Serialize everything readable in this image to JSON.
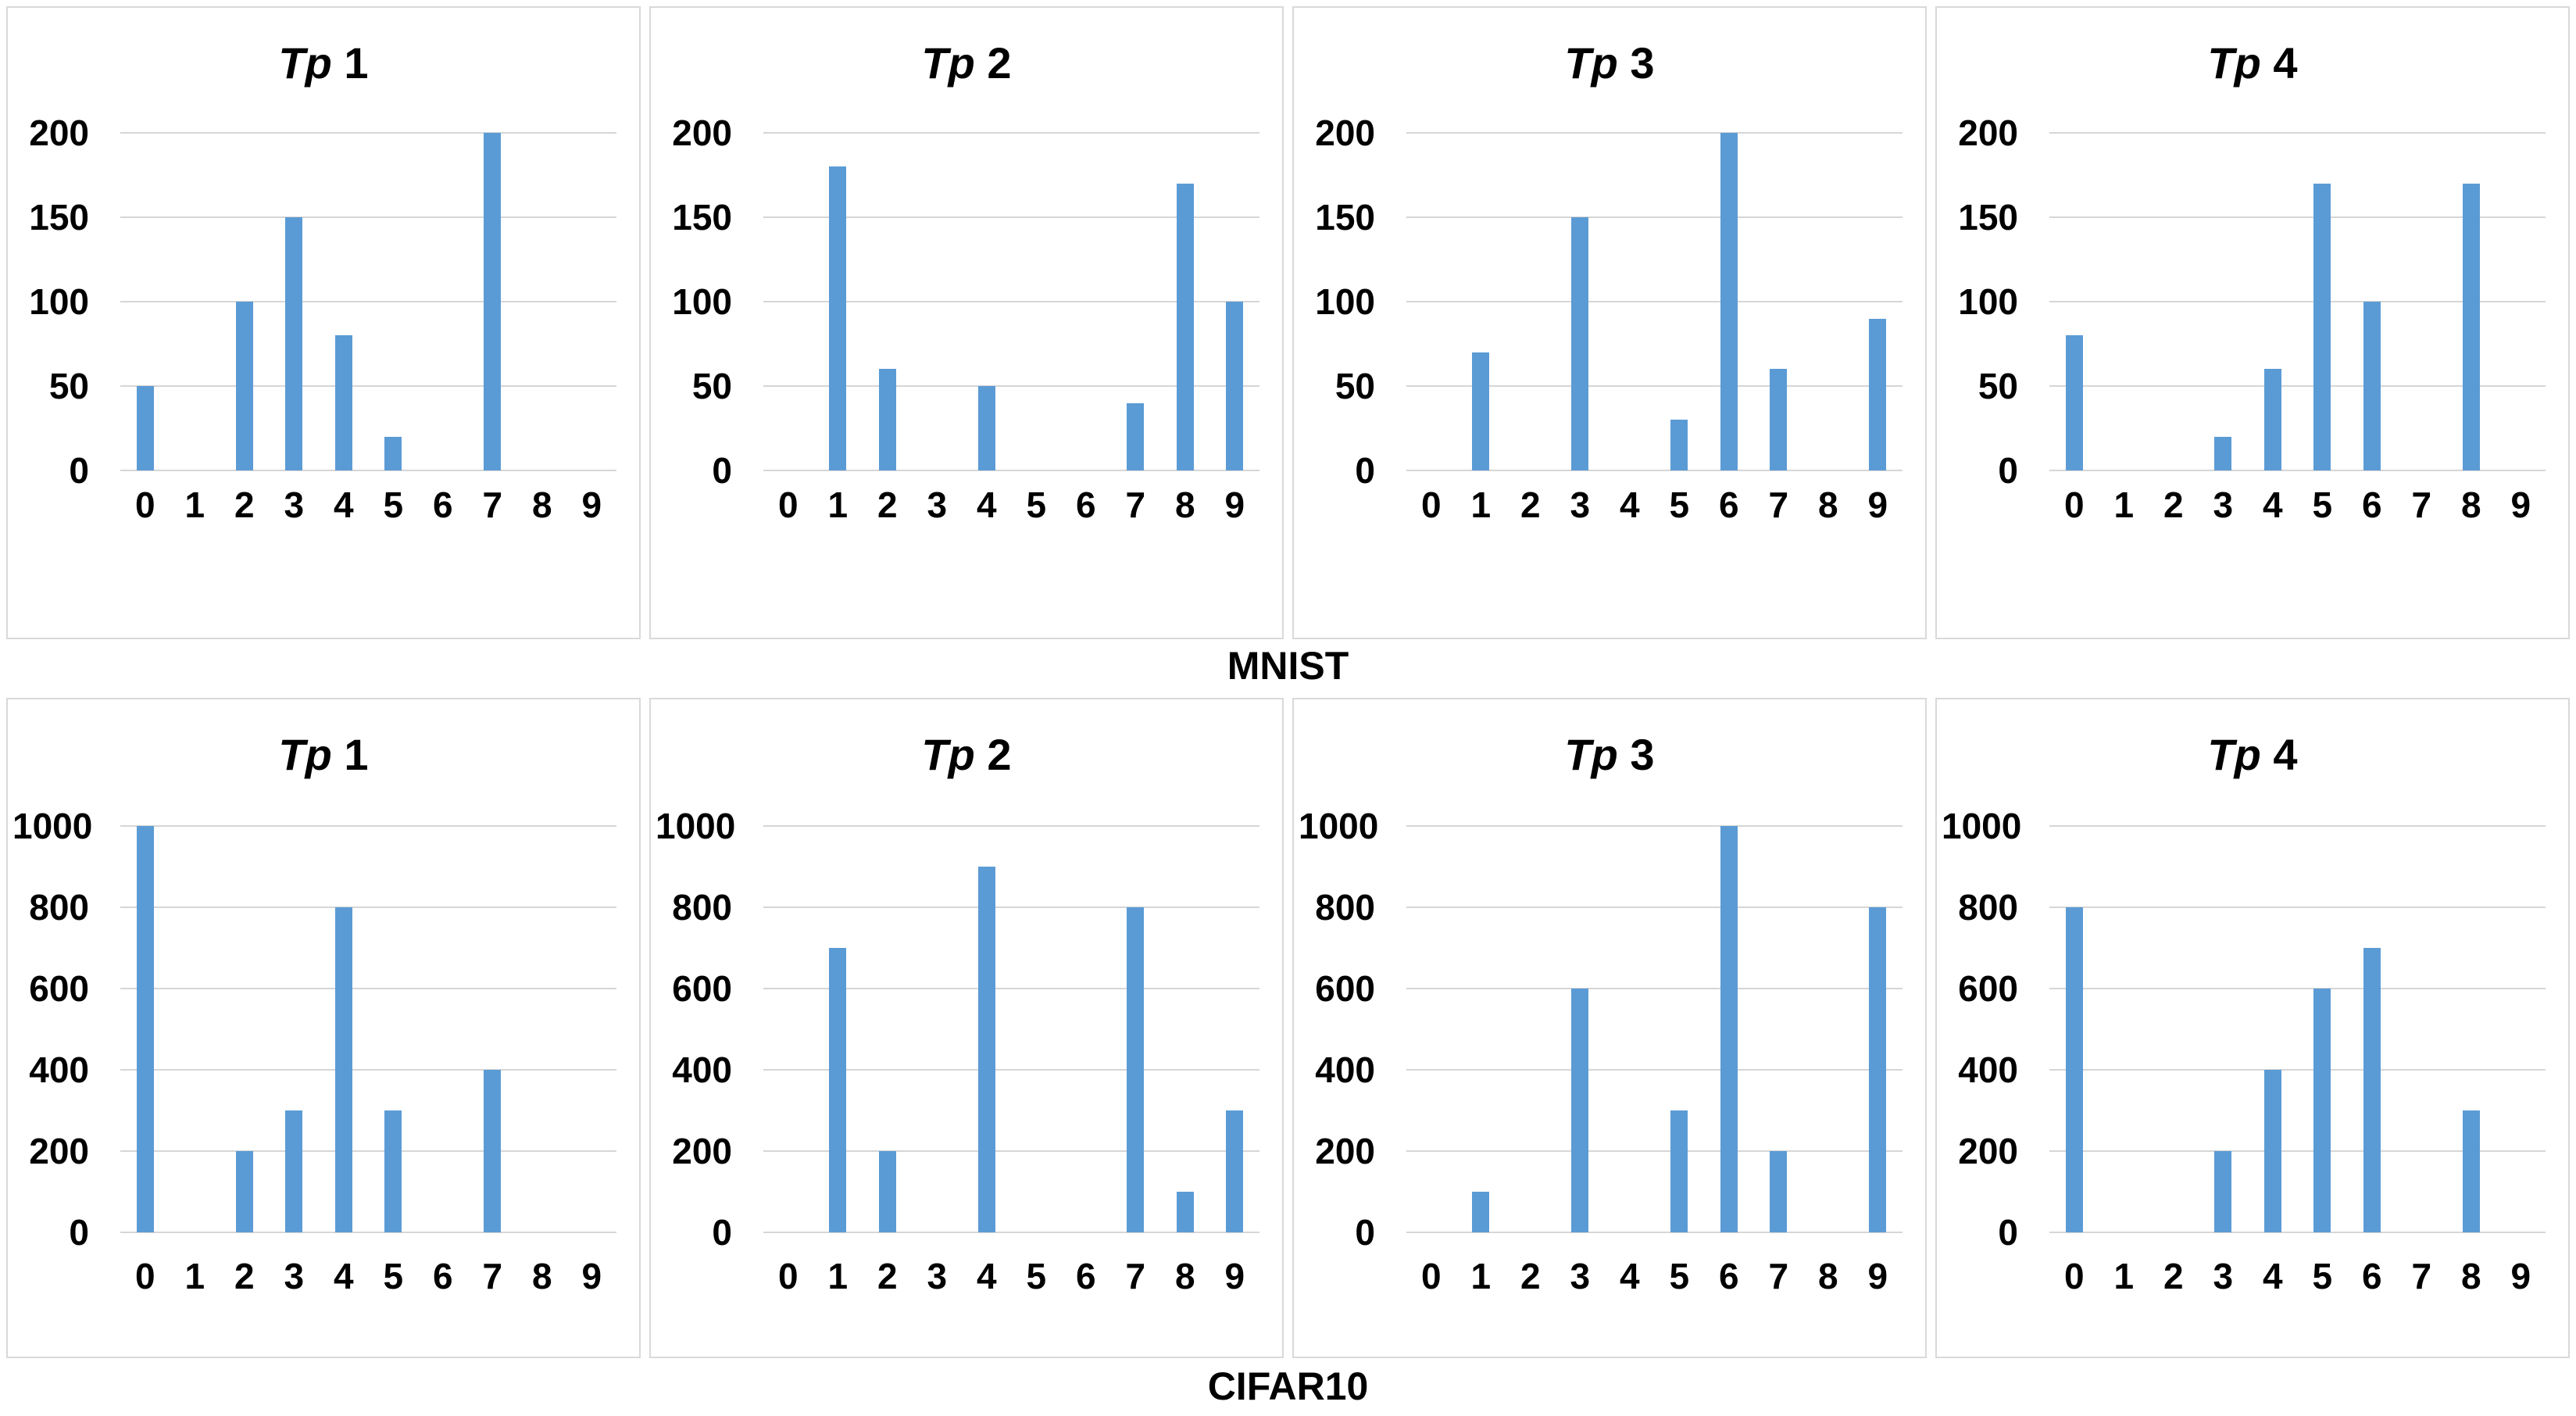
{
  "row_labels": [
    "MNIST",
    "CIFAR10"
  ],
  "colors": {
    "bar": "#5B9BD5",
    "gridline": "#D6D6D6",
    "panel_border": "#D9D9D9",
    "text": "#000000"
  },
  "chart_data": [
    {
      "type": "bar",
      "group": "MNIST",
      "title": "Tp 1",
      "title_prefix": "Tp",
      "title_num": "1",
      "categories": [
        "0",
        "1",
        "2",
        "3",
        "4",
        "5",
        "6",
        "7",
        "8",
        "9"
      ],
      "values": [
        50,
        0,
        100,
        150,
        80,
        20,
        0,
        200,
        0,
        0
      ],
      "ylim": [
        0,
        200
      ],
      "yticks": [
        0,
        50,
        100,
        150,
        200
      ],
      "grid": true,
      "legend": "none"
    },
    {
      "type": "bar",
      "group": "MNIST",
      "title": "Tp 2",
      "title_prefix": "Tp",
      "title_num": "2",
      "categories": [
        "0",
        "1",
        "2",
        "3",
        "4",
        "5",
        "6",
        "7",
        "8",
        "9"
      ],
      "values": [
        0,
        180,
        60,
        0,
        50,
        0,
        0,
        40,
        170,
        100
      ],
      "ylim": [
        0,
        200
      ],
      "yticks": [
        0,
        50,
        100,
        150,
        200
      ],
      "grid": true,
      "legend": "none"
    },
    {
      "type": "bar",
      "group": "MNIST",
      "title": "Tp 3",
      "title_prefix": "Tp",
      "title_num": "3",
      "categories": [
        "0",
        "1",
        "2",
        "3",
        "4",
        "5",
        "6",
        "7",
        "8",
        "9"
      ],
      "values": [
        0,
        70,
        0,
        150,
        0,
        30,
        200,
        60,
        0,
        90
      ],
      "ylim": [
        0,
        200
      ],
      "yticks": [
        0,
        50,
        100,
        150,
        200
      ],
      "grid": true,
      "legend": "none"
    },
    {
      "type": "bar",
      "group": "MNIST",
      "title": "Tp 4",
      "title_prefix": "Tp",
      "title_num": "4",
      "categories": [
        "0",
        "1",
        "2",
        "3",
        "4",
        "5",
        "6",
        "7",
        "8",
        "9"
      ],
      "values": [
        80,
        0,
        0,
        20,
        60,
        170,
        100,
        0,
        170,
        0
      ],
      "ylim": [
        0,
        200
      ],
      "yticks": [
        0,
        50,
        100,
        150,
        200
      ],
      "grid": true,
      "legend": "none"
    },
    {
      "type": "bar",
      "group": "CIFAR10",
      "title": "Tp 1",
      "title_prefix": "Tp",
      "title_num": "1",
      "categories": [
        "0",
        "1",
        "2",
        "3",
        "4",
        "5",
        "6",
        "7",
        "8",
        "9"
      ],
      "values": [
        1000,
        0,
        200,
        300,
        800,
        300,
        0,
        400,
        0,
        0
      ],
      "ylim": [
        0,
        1000
      ],
      "yticks": [
        0,
        200,
        400,
        600,
        800,
        1000
      ],
      "grid": true,
      "legend": "none"
    },
    {
      "type": "bar",
      "group": "CIFAR10",
      "title": "Tp 2",
      "title_prefix": "Tp",
      "title_num": "2",
      "categories": [
        "0",
        "1",
        "2",
        "3",
        "4",
        "5",
        "6",
        "7",
        "8",
        "9"
      ],
      "values": [
        0,
        700,
        200,
        0,
        900,
        0,
        0,
        800,
        100,
        300
      ],
      "ylim": [
        0,
        1000
      ],
      "yticks": [
        0,
        200,
        400,
        600,
        800,
        1000
      ],
      "grid": true,
      "legend": "none"
    },
    {
      "type": "bar",
      "group": "CIFAR10",
      "title": "Tp 3",
      "title_prefix": "Tp",
      "title_num": "3",
      "categories": [
        "0",
        "1",
        "2",
        "3",
        "4",
        "5",
        "6",
        "7",
        "8",
        "9"
      ],
      "values": [
        0,
        100,
        0,
        600,
        0,
        300,
        1000,
        200,
        0,
        800
      ],
      "ylim": [
        0,
        1000
      ],
      "yticks": [
        0,
        200,
        400,
        600,
        800,
        1000
      ],
      "grid": true,
      "legend": "none"
    },
    {
      "type": "bar",
      "group": "CIFAR10",
      "title": "Tp 4",
      "title_prefix": "Tp",
      "title_num": "4",
      "categories": [
        "0",
        "1",
        "2",
        "3",
        "4",
        "5",
        "6",
        "7",
        "8",
        "9"
      ],
      "values": [
        800,
        0,
        0,
        200,
        400,
        600,
        700,
        0,
        300,
        0
      ],
      "ylim": [
        0,
        1000
      ],
      "yticks": [
        0,
        200,
        400,
        600,
        800,
        1000
      ],
      "grid": true,
      "legend": "none"
    }
  ]
}
